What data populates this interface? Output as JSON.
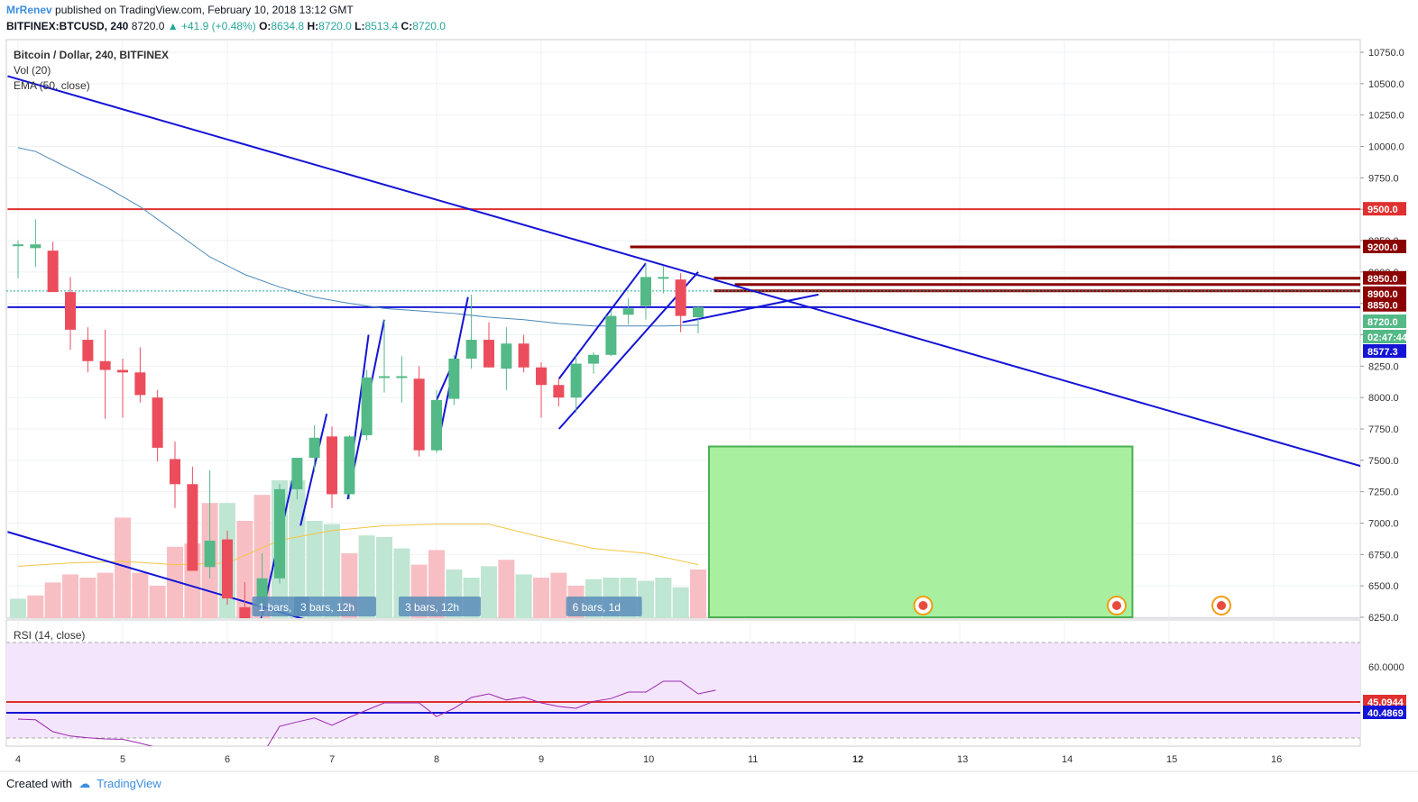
{
  "header": {
    "author": "MrRenev",
    "published_text": "published on TradingView.com, February 10, 2018 13:12 GMT",
    "symbol": "BITFINEX:BTCUSD, 240",
    "last": "8720.0",
    "change": "+41.9 (+0.48%)",
    "o_label": "O:",
    "o": "8634.8",
    "h_label": "H:",
    "h": "8720.0",
    "l_label": "L:",
    "l": "8513.4",
    "c_label": "C:",
    "c": "8720.0"
  },
  "legend": {
    "title": "Bitcoin / Dollar, 240, BITFINEX",
    "vol": "Vol (20)",
    "ema": "EMA (50, close)",
    "rsi": "RSI (14, close)"
  },
  "footer": {
    "created_with": "Created with",
    "brand": "TradingView"
  },
  "colors": {
    "up": "#53b987",
    "down": "#eb4d5c",
    "trend": "#1414d6",
    "ema": "#4a88b8",
    "resistance": "#8b0000",
    "red_line": "#e03030",
    "target_box": "#a8f0a0"
  },
  "chart_data": [
    {
      "type": "candlestick",
      "title": "Bitcoin / Dollar, 240, BITFINEX",
      "x_ticks": [
        "4",
        "5",
        "6",
        "7",
        "8",
        "9",
        "10",
        "11",
        "12",
        "13",
        "14",
        "15",
        "16"
      ],
      "y_ticks": [
        "10750.0",
        "10500.0",
        "10250.0",
        "10000.0",
        "9750.0",
        "9500.0",
        "9250.0",
        "9000.0",
        "8750.0",
        "8500.0",
        "8250.0",
        "8000.0",
        "7750.0",
        "7500.0",
        "7250.0",
        "7000.0",
        "6750.0",
        "6500.0",
        "6250.0"
      ],
      "ylim": [
        6250,
        10750
      ],
      "candles": [
        {
          "t": 4.0,
          "o": 9220,
          "h": 9250,
          "l": 8950,
          "c": 9220
        },
        {
          "t": 4.167,
          "o": 9190,
          "h": 9420,
          "l": 9040,
          "c": 9220
        },
        {
          "t": 4.333,
          "o": 9170,
          "h": 9240,
          "l": 8840,
          "c": 8840
        },
        {
          "t": 4.5,
          "o": 8840,
          "h": 8960,
          "l": 8380,
          "c": 8540
        },
        {
          "t": 4.667,
          "o": 8460,
          "h": 8560,
          "l": 8200,
          "c": 8290
        },
        {
          "t": 4.833,
          "o": 8290,
          "h": 8540,
          "l": 7830,
          "c": 8220
        },
        {
          "t": 5.0,
          "o": 8220,
          "h": 8310,
          "l": 7840,
          "c": 8200
        },
        {
          "t": 5.167,
          "o": 8200,
          "h": 8400,
          "l": 7960,
          "c": 8020
        },
        {
          "t": 5.333,
          "o": 8000,
          "h": 8060,
          "l": 7490,
          "c": 7600
        },
        {
          "t": 5.5,
          "o": 7510,
          "h": 7650,
          "l": 7120,
          "c": 7310
        },
        {
          "t": 5.667,
          "o": 7310,
          "h": 7450,
          "l": 6620,
          "c": 6620
        },
        {
          "t": 5.833,
          "o": 6650,
          "h": 7420,
          "l": 6560,
          "c": 6860
        },
        {
          "t": 6.0,
          "o": 6870,
          "h": 6940,
          "l": 6350,
          "c": 6400
        },
        {
          "t": 6.167,
          "o": 6330,
          "h": 6530,
          "l": 6060,
          "c": 6090
        },
        {
          "t": 6.333,
          "o": 6340,
          "h": 6760,
          "l": 6030,
          "c": 6560
        },
        {
          "t": 6.5,
          "o": 6560,
          "h": 7310,
          "l": 6520,
          "c": 7270
        },
        {
          "t": 6.667,
          "o": 7270,
          "h": 7490,
          "l": 7190,
          "c": 7520
        },
        {
          "t": 6.833,
          "o": 7520,
          "h": 7780,
          "l": 7410,
          "c": 7680
        },
        {
          "t": 7.0,
          "o": 7690,
          "h": 7770,
          "l": 7120,
          "c": 7230
        },
        {
          "t": 7.167,
          "o": 7230,
          "h": 7700,
          "l": 7190,
          "c": 7690
        },
        {
          "t": 7.333,
          "o": 7700,
          "h": 8220,
          "l": 7660,
          "c": 8160
        },
        {
          "t": 7.5,
          "o": 8160,
          "h": 8620,
          "l": 8040,
          "c": 8170
        },
        {
          "t": 7.667,
          "o": 8170,
          "h": 8330,
          "l": 7960,
          "c": 8170
        },
        {
          "t": 7.833,
          "o": 8150,
          "h": 8250,
          "l": 7530,
          "c": 7580
        },
        {
          "t": 8.0,
          "o": 7580,
          "h": 8060,
          "l": 7560,
          "c": 7980
        },
        {
          "t": 8.167,
          "o": 7990,
          "h": 8340,
          "l": 7940,
          "c": 8310
        },
        {
          "t": 8.333,
          "o": 8310,
          "h": 8820,
          "l": 8230,
          "c": 8460
        },
        {
          "t": 8.5,
          "o": 8460,
          "h": 8600,
          "l": 8240,
          "c": 8240
        },
        {
          "t": 8.667,
          "o": 8230,
          "h": 8560,
          "l": 8060,
          "c": 8430
        },
        {
          "t": 8.833,
          "o": 8430,
          "h": 8500,
          "l": 8200,
          "c": 8240
        },
        {
          "t": 9.0,
          "o": 8240,
          "h": 8280,
          "l": 7840,
          "c": 8100
        },
        {
          "t": 9.167,
          "o": 8100,
          "h": 8150,
          "l": 7930,
          "c": 8000
        },
        {
          "t": 9.333,
          "o": 8000,
          "h": 8330,
          "l": 7880,
          "c": 8270
        },
        {
          "t": 9.5,
          "o": 8270,
          "h": 8360,
          "l": 8190,
          "c": 8340
        },
        {
          "t": 9.667,
          "o": 8340,
          "h": 8690,
          "l": 8330,
          "c": 8650
        },
        {
          "t": 9.833,
          "o": 8660,
          "h": 8790,
          "l": 8580,
          "c": 8710
        },
        {
          "t": 10.0,
          "o": 8730,
          "h": 9070,
          "l": 8620,
          "c": 8960
        },
        {
          "t": 10.167,
          "o": 8950,
          "h": 9050,
          "l": 8830,
          "c": 8960
        },
        {
          "t": 10.333,
          "o": 8940,
          "h": 8990,
          "l": 8520,
          "c": 8650
        },
        {
          "t": 10.5,
          "o": 8640,
          "h": 8730,
          "l": 8510,
          "c": 8720
        }
      ],
      "ema": [
        {
          "t": 4.0,
          "v": 9990
        },
        {
          "t": 4.167,
          "v": 9960
        },
        {
          "t": 4.5,
          "v": 9820
        },
        {
          "t": 4.833,
          "v": 9680
        },
        {
          "t": 5.167,
          "v": 9520
        },
        {
          "t": 5.5,
          "v": 9320
        },
        {
          "t": 5.833,
          "v": 9120
        },
        {
          "t": 6.167,
          "v": 8980
        },
        {
          "t": 6.5,
          "v": 8880
        },
        {
          "t": 6.833,
          "v": 8800
        },
        {
          "t": 7.167,
          "v": 8750
        },
        {
          "t": 7.5,
          "v": 8710
        },
        {
          "t": 7.833,
          "v": 8690
        },
        {
          "t": 8.167,
          "v": 8670
        },
        {
          "t": 8.5,
          "v": 8640
        },
        {
          "t": 8.833,
          "v": 8620
        },
        {
          "t": 9.167,
          "v": 8590
        },
        {
          "t": 9.5,
          "v": 8570
        },
        {
          "t": 9.833,
          "v": 8570
        },
        {
          "t": 10.167,
          "v": 8570
        },
        {
          "t": 10.5,
          "v": 8577
        }
      ],
      "horizontal_levels": [
        {
          "value": 9500,
          "label": "9500.0",
          "kind": "red",
          "from": 3.9
        },
        {
          "value": 9200,
          "label": "9200.0",
          "kind": "resistance",
          "from": 9.85
        },
        {
          "value": 8950,
          "label": "8950.0",
          "kind": "resistance",
          "from": 10.65
        },
        {
          "value": 8900,
          "label": "8900.0",
          "kind": "resistance",
          "from": 10.85
        },
        {
          "value": 8850,
          "label": "8850.0",
          "kind": "resistance",
          "from": 10.65
        },
        {
          "value": 8720,
          "label": "8720.0",
          "kind": "blue",
          "from": 3.9
        }
      ],
      "price_tags": [
        {
          "value": 8720,
          "label": "8720.0",
          "kind": "last"
        },
        {
          "value": 8610,
          "label": "02:47:44",
          "kind": "timer"
        },
        {
          "value": 8577,
          "label": "8577.3",
          "kind": "ema"
        }
      ],
      "target_box": {
        "t0": 10.5,
        "t1": 14.65,
        "y0": 6250,
        "y1": 7610
      },
      "pattern_labels": [
        {
          "t": 6.6,
          "text": "1 bars,"
        },
        {
          "t": 7.0,
          "text": "3 bars, 12h"
        },
        {
          "t": 8.0,
          "text": "3 bars, 12h"
        },
        {
          "t": 9.6,
          "text": "6 bars, 1d"
        }
      ],
      "volume": [
        [
          4.0,
          0.12,
          1
        ],
        [
          4.167,
          0.14,
          0
        ],
        [
          4.333,
          0.22,
          0
        ],
        [
          4.5,
          0.27,
          0
        ],
        [
          4.667,
          0.25,
          0
        ],
        [
          4.833,
          0.28,
          0
        ],
        [
          5.0,
          0.62,
          0
        ],
        [
          5.167,
          0.28,
          0
        ],
        [
          5.333,
          0.2,
          0
        ],
        [
          5.5,
          0.44,
          0
        ],
        [
          5.667,
          0.46,
          0
        ],
        [
          5.833,
          0.71,
          0
        ],
        [
          6.0,
          0.71,
          1
        ],
        [
          6.167,
          0.6,
          0
        ],
        [
          6.333,
          0.76,
          0
        ],
        [
          6.5,
          0.85,
          1
        ],
        [
          6.667,
          0.85,
          1
        ],
        [
          6.833,
          0.6,
          1
        ],
        [
          7.0,
          0.58,
          1
        ],
        [
          7.167,
          0.4,
          0
        ],
        [
          7.333,
          0.51,
          1
        ],
        [
          7.5,
          0.5,
          1
        ],
        [
          7.667,
          0.43,
          1
        ],
        [
          7.833,
          0.33,
          0
        ],
        [
          8.0,
          0.42,
          0
        ],
        [
          8.167,
          0.3,
          1
        ],
        [
          8.333,
          0.25,
          1
        ],
        [
          8.5,
          0.32,
          1
        ],
        [
          8.667,
          0.36,
          0
        ],
        [
          8.833,
          0.27,
          1
        ],
        [
          9.0,
          0.25,
          0
        ],
        [
          9.167,
          0.28,
          0
        ],
        [
          9.333,
          0.2,
          0
        ],
        [
          9.5,
          0.24,
          1
        ],
        [
          9.667,
          0.25,
          1
        ],
        [
          9.833,
          0.25,
          1
        ],
        [
          10.0,
          0.23,
          1
        ],
        [
          10.167,
          0.25,
          1
        ],
        [
          10.333,
          0.19,
          1
        ],
        [
          10.5,
          0.3,
          0
        ],
        [
          10.667,
          0.04,
          1
        ]
      ],
      "volume_ma": [
        [
          4.0,
          0.32
        ],
        [
          4.5,
          0.34
        ],
        [
          5.0,
          0.35
        ],
        [
          5.5,
          0.33
        ],
        [
          6.0,
          0.34
        ],
        [
          6.5,
          0.48
        ],
        [
          7.0,
          0.54
        ],
        [
          7.5,
          0.57
        ],
        [
          8.0,
          0.58
        ],
        [
          8.5,
          0.58
        ],
        [
          9.0,
          0.5
        ],
        [
          9.5,
          0.43
        ],
        [
          10.0,
          0.4
        ],
        [
          10.5,
          0.33
        ]
      ]
    },
    {
      "type": "line",
      "title": "RSI (14, close)",
      "y_ticks": [
        "60.0000"
      ],
      "levels": [
        {
          "value": 45.0944,
          "label": "45.0944",
          "kind": "red"
        },
        {
          "value": 40.4869,
          "label": "40.4869",
          "kind": "blue"
        }
      ],
      "points": [
        [
          4.0,
          45.5
        ],
        [
          4.167,
          45.3
        ],
        [
          4.333,
          42.0
        ],
        [
          4.5,
          40.8
        ],
        [
          4.667,
          40.3
        ],
        [
          4.833,
          40.0
        ],
        [
          5.0,
          39.9
        ],
        [
          5.167,
          38.8
        ],
        [
          5.333,
          37.6
        ],
        [
          5.5,
          37.5
        ],
        [
          5.667,
          37.0
        ],
        [
          5.833,
          37.2
        ],
        [
          6.0,
          35.2
        ],
        [
          6.167,
          32.6
        ],
        [
          6.333,
          35.5
        ],
        [
          6.5,
          43.5
        ],
        [
          6.667,
          44.7
        ],
        [
          6.833,
          45.8
        ],
        [
          7.0,
          43.8
        ],
        [
          7.167,
          46.0
        ],
        [
          7.333,
          48.0
        ],
        [
          7.5,
          50.0
        ],
        [
          7.667,
          50.0
        ],
        [
          7.833,
          50.0
        ],
        [
          8.0,
          46.2
        ],
        [
          8.167,
          48.5
        ],
        [
          8.333,
          51.5
        ],
        [
          8.5,
          52.5
        ],
        [
          8.667,
          50.8
        ],
        [
          8.833,
          51.6
        ],
        [
          9.0,
          50.0
        ],
        [
          9.167,
          49.0
        ],
        [
          9.333,
          48.5
        ],
        [
          9.5,
          50.4
        ],
        [
          9.667,
          51.2
        ],
        [
          9.833,
          53.0
        ],
        [
          10.0,
          53.0
        ],
        [
          10.167,
          56.0
        ],
        [
          10.333,
          56.0
        ],
        [
          10.5,
          52.5
        ],
        [
          10.667,
          53.5
        ]
      ]
    }
  ]
}
